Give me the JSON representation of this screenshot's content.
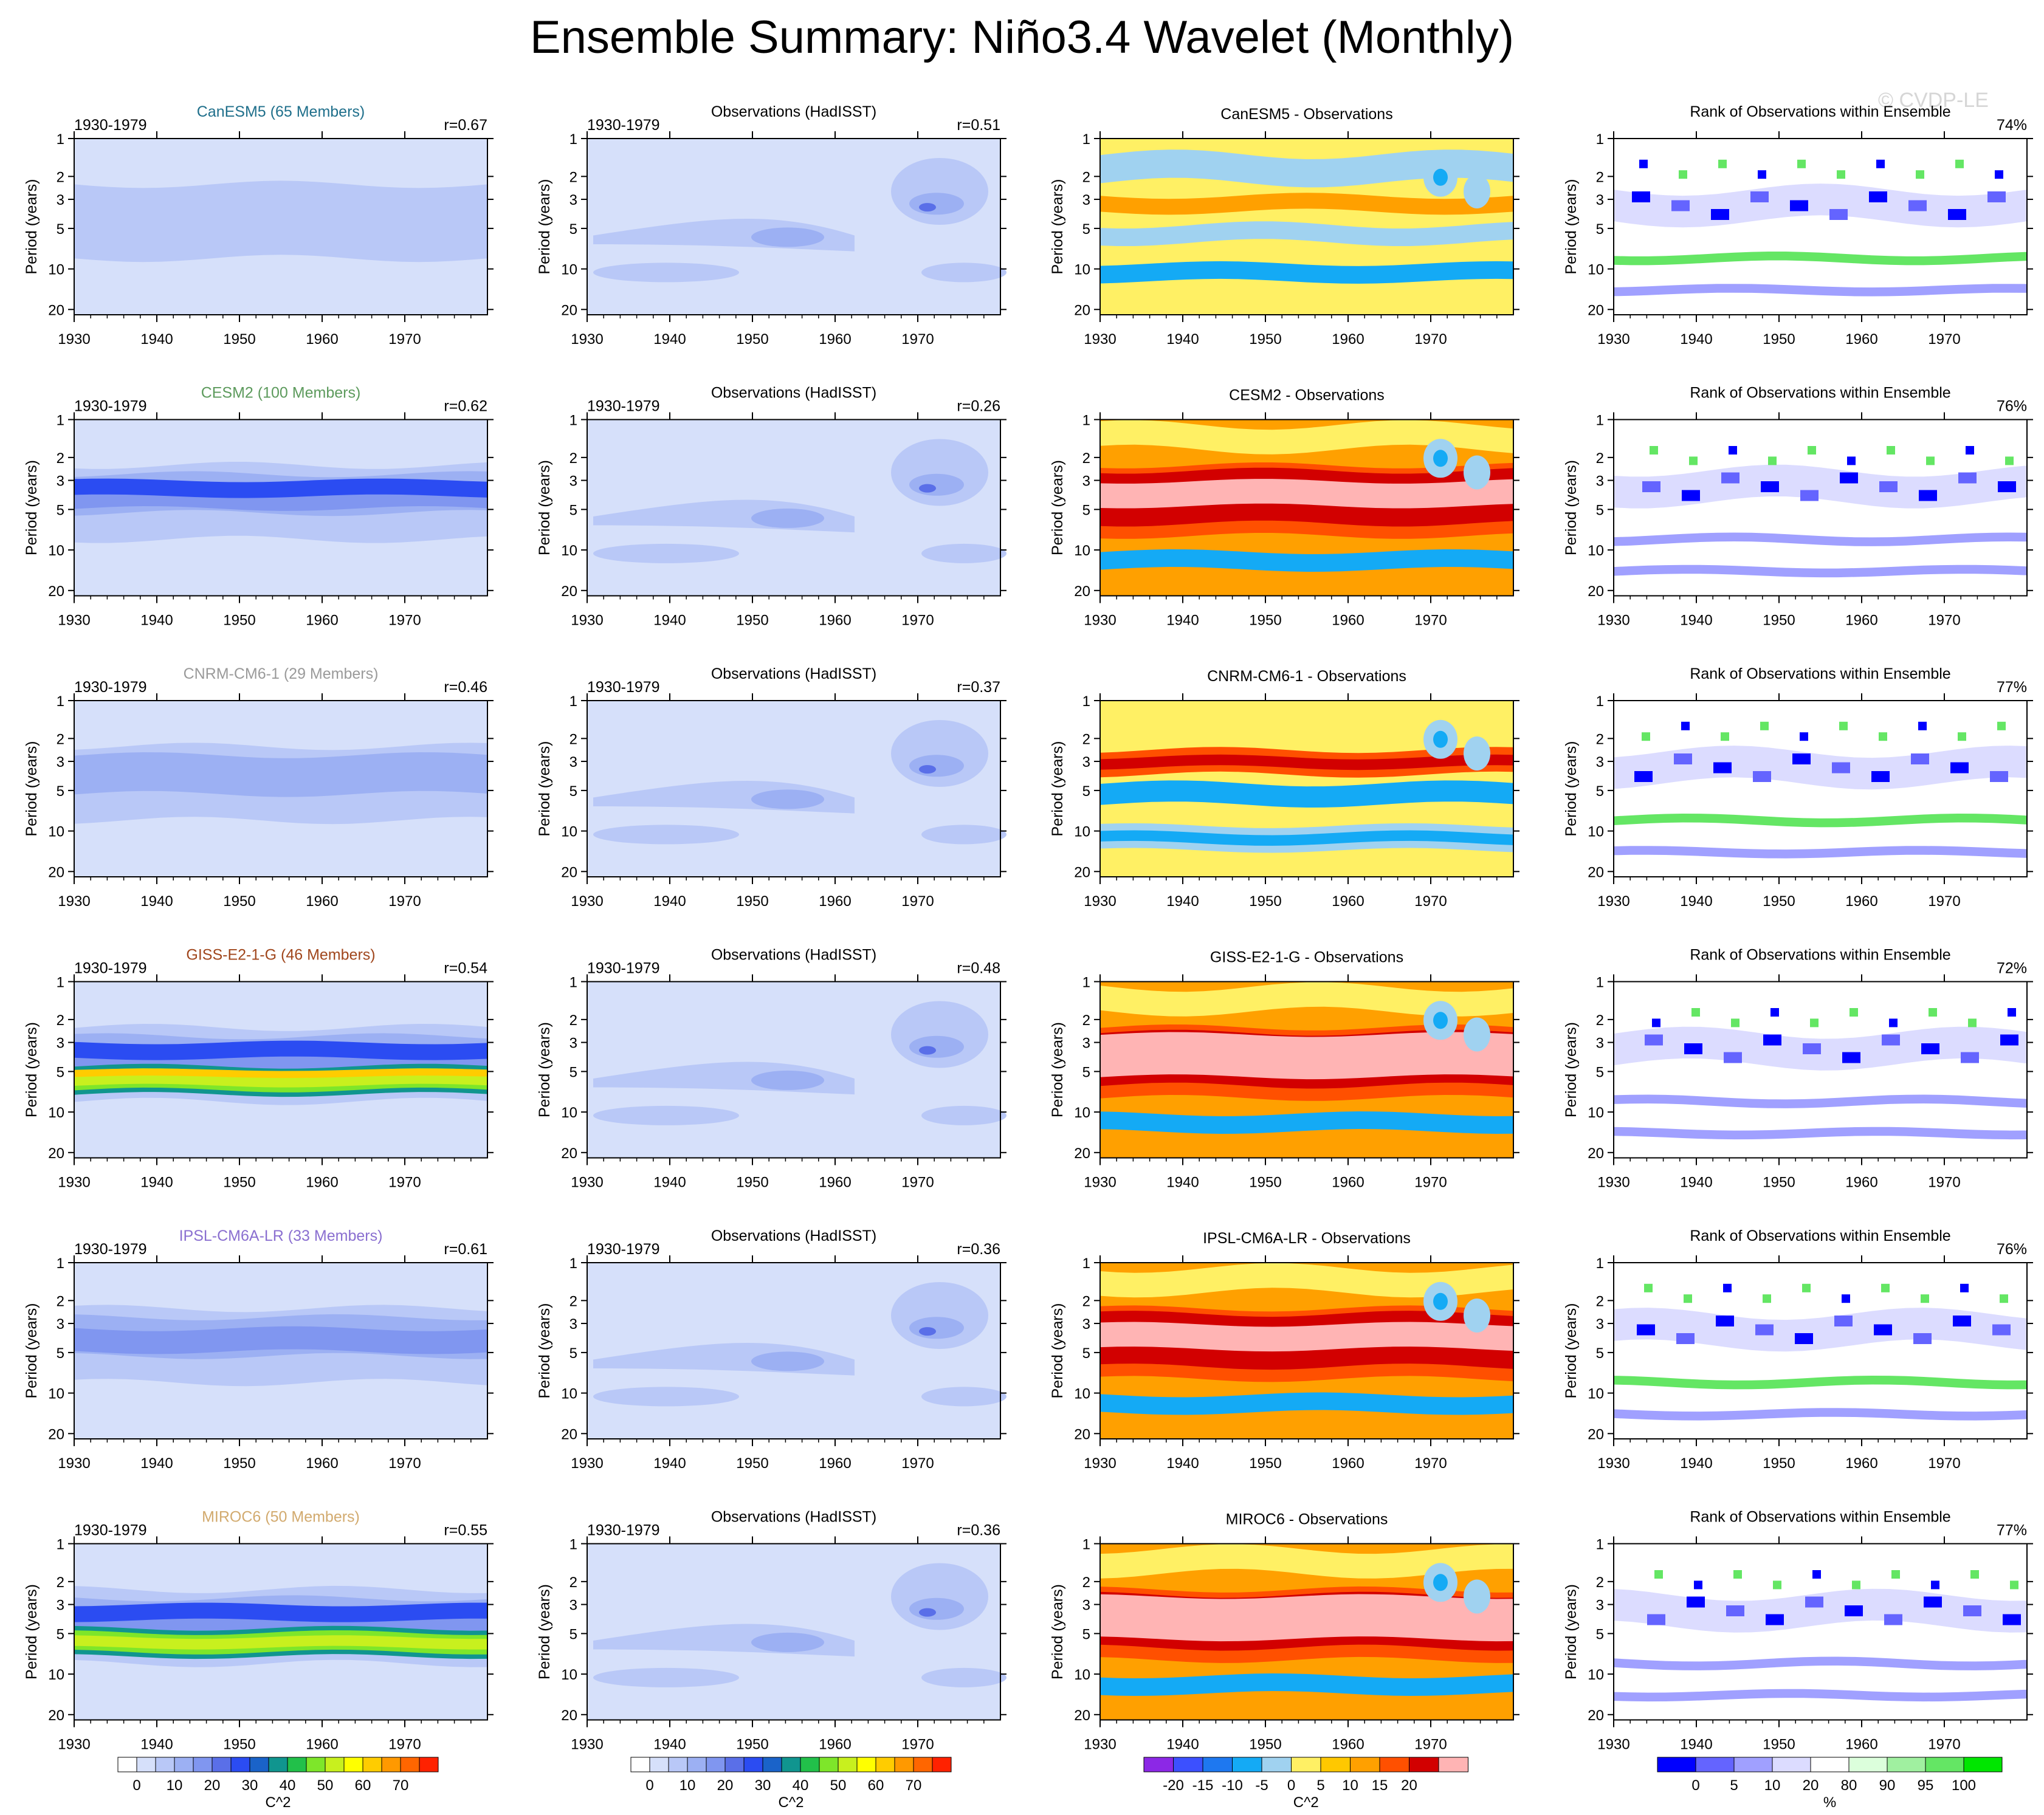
{
  "page": {
    "title": "Ensemble Summary: Niño3.4 Wavelet (Monthly)",
    "watermark": "© CVDP-LE"
  },
  "axes": {
    "ylabel": "Period (years)",
    "yticks": [
      "1",
      "2",
      "3",
      "5",
      "10",
      "20"
    ],
    "xticks": [
      "1930",
      "1940",
      "1950",
      "1960",
      "1970"
    ],
    "xlim": [
      1930,
      1980
    ]
  },
  "columns": [
    {
      "kind": "model"
    },
    {
      "kind": "obs"
    },
    {
      "kind": "diff"
    },
    {
      "kind": "rank"
    }
  ],
  "rows": [
    {
      "model": "CanESM5",
      "members": "CanESM5 (65 Members)",
      "color": "#1f6f8b",
      "model_years": "1930-1979",
      "model_r": "r=0.67",
      "model_level": 2,
      "obs_title": "Observations (HadISST)",
      "obs_years": "1930-1979",
      "obs_r": "r=0.51",
      "diff_title": "CanESM5 - Observations",
      "diff_level": 0,
      "rank_title": "Rank of Observations within Ensemble",
      "rank_pct": "74%"
    },
    {
      "model": "CESM2",
      "members": "CESM2 (100 Members)",
      "color": "#5c9a5c",
      "model_years": "1930-1979",
      "model_r": "r=0.62",
      "model_level": 6,
      "obs_title": "Observations (HadISST)",
      "obs_years": "1930-1979",
      "obs_r": "r=0.26",
      "diff_title": "CESM2 - Observations",
      "diff_level": 2,
      "rank_title": "Rank of Observations within Ensemble",
      "rank_pct": "76%"
    },
    {
      "model": "CNRM-CM6-1",
      "members": "CNRM-CM6-1 (29 Members)",
      "color": "#9a9a9a",
      "model_years": "1930-1979",
      "model_r": "r=0.46",
      "model_level": 3,
      "obs_title": "Observations (HadISST)",
      "obs_years": "1930-1979",
      "obs_r": "r=0.37",
      "diff_title": "CNRM-CM6-1 - Observations",
      "diff_level": 1,
      "rank_title": "Rank of Observations within Ensemble",
      "rank_pct": "77%"
    },
    {
      "model": "GISS-E2-1-G",
      "members": "GISS-E2-1-G (46 Members)",
      "color": "#a0461c",
      "model_years": "1930-1979",
      "model_r": "r=0.54",
      "model_level": 12,
      "obs_title": "Observations (HadISST)",
      "obs_years": "1930-1979",
      "obs_r": "r=0.48",
      "diff_title": "GISS-E2-1-G - Observations",
      "diff_level": 3,
      "rank_title": "Rank of Observations within Ensemble",
      "rank_pct": "72%"
    },
    {
      "model": "IPSL-CM6A-LR",
      "members": "IPSL-CM6A-LR (33 Members)",
      "color": "#8a6fd0",
      "model_years": "1930-1979",
      "model_r": "r=0.61",
      "model_level": 4,
      "obs_title": "Observations (HadISST)",
      "obs_years": "1930-1979",
      "obs_r": "r=0.36",
      "diff_title": "IPSL-CM6A-LR - Observations",
      "diff_level": 2,
      "rank_title": "Rank of Observations within Ensemble",
      "rank_pct": "76%"
    },
    {
      "model": "MIROC6",
      "members": "MIROC6 (50 Members)",
      "color": "#d2aa6e",
      "model_years": "1930-1979",
      "model_r": "r=0.55",
      "model_level": 9,
      "obs_title": "Observations (HadISST)",
      "obs_years": "1930-1979",
      "obs_r": "r=0.36",
      "diff_title": "MIROC6 - Observations",
      "diff_level": 3,
      "rank_title": "Rank of Observations within Ensemble",
      "rank_pct": "77%"
    }
  ],
  "colorbars": {
    "power": {
      "unit": "C^2",
      "labels": [
        "0",
        "10",
        "20",
        "30",
        "40",
        "50",
        "60",
        "70"
      ],
      "colors": [
        "#ffffff",
        "#d6e0fa",
        "#b9c8f7",
        "#9cb0f3",
        "#8096f0",
        "#5a6fe8",
        "#2b4cf2",
        "#1a63c9",
        "#10958f",
        "#22c04a",
        "#7ee62a",
        "#c8f01e",
        "#ffff00",
        "#ffcc00",
        "#ff9900",
        "#ff6600",
        "#ff2200"
      ]
    },
    "diff": {
      "unit": "C^2",
      "labels": [
        "-20",
        "-15",
        "-10",
        "-5",
        "0",
        "5",
        "10",
        "15",
        "20"
      ],
      "colors": [
        "#8c28e6",
        "#3c50ff",
        "#1e78f0",
        "#14aaf5",
        "#a0d2f0",
        "#fff064",
        "#ffc800",
        "#ffa000",
        "#ff5000",
        "#d20000",
        "#ffb4b4"
      ]
    },
    "rank": {
      "unit": "%",
      "labels": [
        "0",
        "5",
        "10",
        "20",
        "80",
        "90",
        "95",
        "100"
      ],
      "colors": [
        "#0000ff",
        "#6464ff",
        "#a0a0ff",
        "#dcdcff",
        "#ffffff",
        "#dcffdc",
        "#a0f0a0",
        "#64e664",
        "#00e600"
      ]
    }
  }
}
